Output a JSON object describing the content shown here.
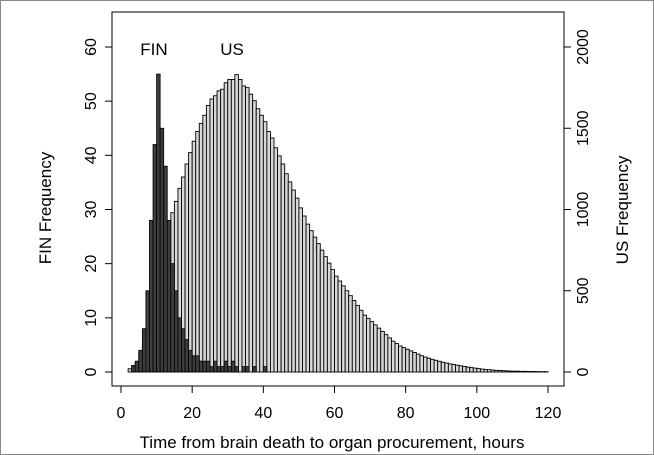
{
  "chart_data": {
    "type": "histogram",
    "xlabel": "Time from brain death to organ procurement, hours",
    "ylabel_left": "FIN Frequency",
    "ylabel_right": "US Frequency",
    "xlim": [
      0,
      120
    ],
    "ylim_left": [
      0,
      60
    ],
    "ylim_right": [
      0,
      2000
    ],
    "xticks": [
      0,
      20,
      40,
      60,
      80,
      100,
      120
    ],
    "yticks_left": [
      0,
      10,
      20,
      30,
      40,
      50,
      60
    ],
    "yticks_right": [
      0,
      500,
      1000,
      1500,
      2000
    ],
    "bin_width": 1,
    "grid": false,
    "colors": {
      "US": "#d9d9d9",
      "FIN": "#3d3d3d",
      "outline": "#000000"
    },
    "series": [
      {
        "name": "US",
        "axis": "right",
        "bin_start": 2,
        "values": [
          20,
          40,
          60,
          110,
          160,
          220,
          300,
          380,
          480,
          600,
          720,
          850,
          980,
          1050,
          1130,
          1200,
          1280,
          1350,
          1420,
          1480,
          1530,
          1580,
          1640,
          1680,
          1700,
          1730,
          1740,
          1780,
          1800,
          1800,
          1830,
          1800,
          1760,
          1750,
          1710,
          1670,
          1620,
          1580,
          1540,
          1480,
          1440,
          1380,
          1330,
          1280,
          1220,
          1170,
          1120,
          1070,
          1010,
          960,
          910,
          870,
          830,
          790,
          750,
          710,
          670,
          630,
          590,
          560,
          530,
          500,
          470,
          440,
          410,
          380,
          350,
          330,
          310,
          290,
          270,
          250,
          230,
          210,
          190,
          175,
          160,
          150,
          140,
          130,
          120,
          110,
          100,
          92,
          85,
          78,
          72,
          66,
          60,
          55,
          50,
          46,
          42,
          38,
          34,
          30,
          27,
          24,
          21,
          18,
          16,
          14,
          12,
          10,
          9,
          8,
          7,
          6,
          5,
          5,
          4,
          4,
          3,
          3,
          3,
          2,
          2,
          2
        ]
      },
      {
        "name": "FIN",
        "axis": "left",
        "bin_start": 2,
        "values": [
          0,
          1,
          2,
          4,
          8,
          15,
          28,
          42,
          55,
          45,
          38,
          28,
          20,
          15,
          10,
          8,
          6,
          4,
          3,
          3,
          2,
          2,
          2,
          1,
          2,
          1,
          1,
          2,
          1,
          2,
          1,
          0,
          1,
          1,
          0,
          1,
          0,
          0,
          1
        ]
      }
    ],
    "annotations": [
      "FIN",
      "US"
    ]
  }
}
